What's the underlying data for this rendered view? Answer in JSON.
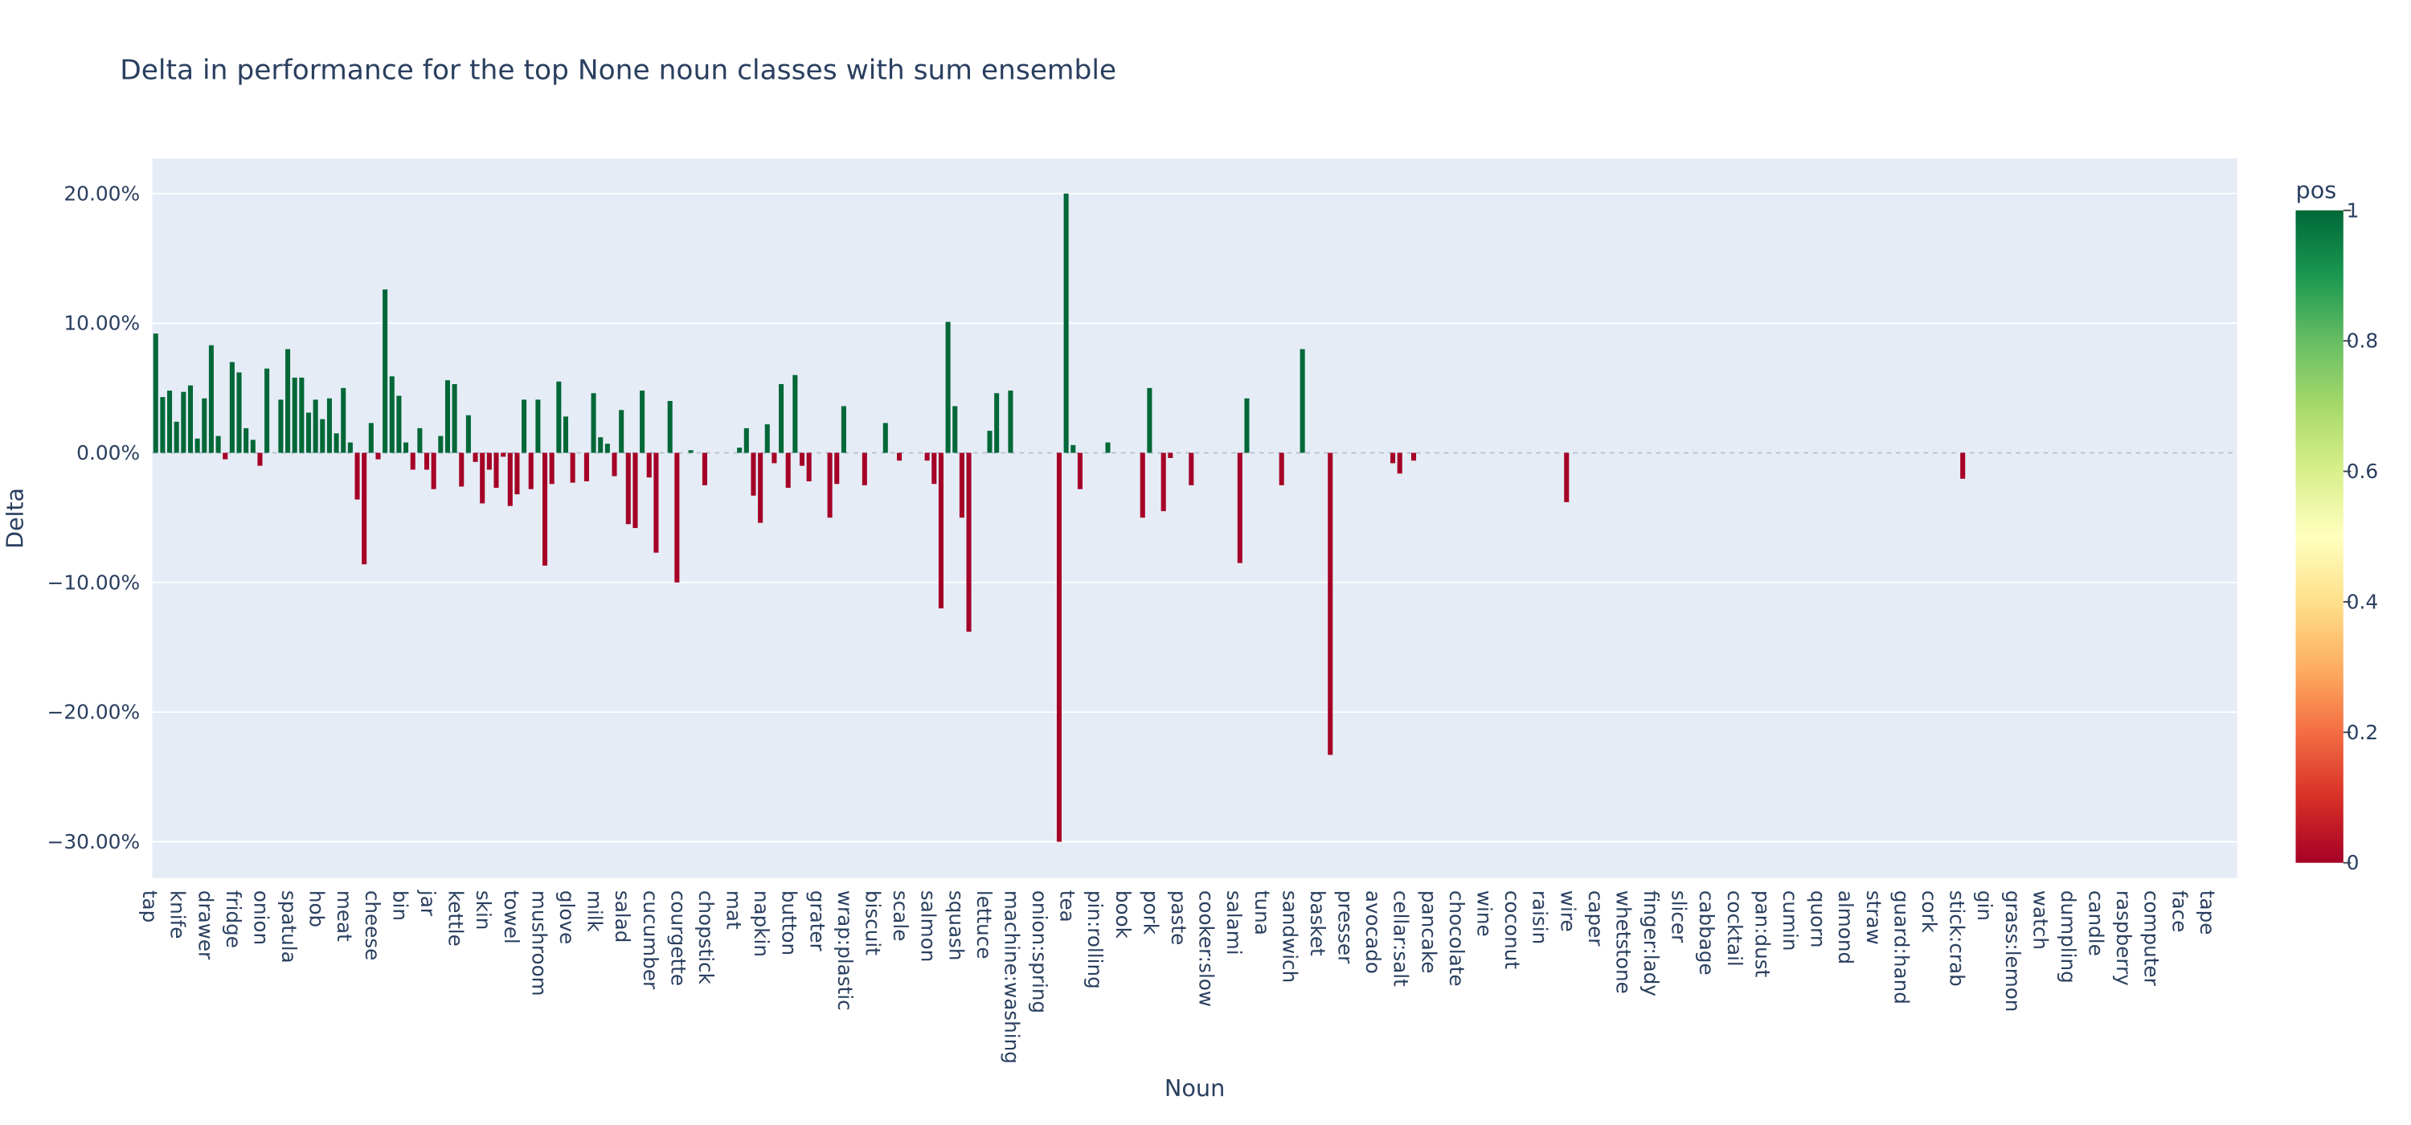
{
  "chart_data": {
    "type": "bar",
    "title": "Delta in performance for the top None noun classes with sum ensemble",
    "xlabel": "Noun",
    "ylabel": "Delta",
    "categories": [
      "tap",
      null,
      null,
      null,
      "knife",
      null,
      null,
      null,
      "drawer",
      null,
      null,
      null,
      "fridge",
      null,
      null,
      null,
      "onion",
      null,
      null,
      null,
      "spatula",
      null,
      null,
      null,
      "hob",
      null,
      null,
      null,
      "meat",
      null,
      null,
      null,
      "cheese",
      null,
      null,
      null,
      "bin",
      null,
      null,
      null,
      "jar",
      null,
      null,
      null,
      "kettle",
      null,
      null,
      null,
      "skin",
      null,
      null,
      null,
      "towel",
      null,
      null,
      null,
      "mushroom",
      null,
      null,
      null,
      "glove",
      null,
      null,
      null,
      "milk",
      null,
      null,
      null,
      "salad",
      null,
      null,
      null,
      "cucumber",
      null,
      null,
      null,
      "courgette",
      null,
      null,
      null,
      "chopstick",
      null,
      null,
      null,
      "mat",
      null,
      null,
      null,
      "napkin",
      null,
      null,
      null,
      "button",
      null,
      null,
      null,
      "grater",
      null,
      null,
      null,
      "wrap:plastic",
      null,
      null,
      null,
      "biscuit",
      null,
      null,
      null,
      "scale",
      null,
      null,
      null,
      "salmon",
      null,
      null,
      null,
      "squash",
      null,
      null,
      null,
      "lettuce",
      null,
      null,
      null,
      "machine:washing",
      null,
      null,
      null,
      "onion:spring",
      null,
      null,
      null,
      "tea",
      null,
      null,
      null,
      "pin:rolling",
      null,
      null,
      null,
      "book",
      null,
      null,
      null,
      "pork",
      null,
      null,
      null,
      "paste",
      null,
      null,
      null,
      "cooker:slow",
      null,
      null,
      null,
      "salami",
      null,
      null,
      null,
      "tuna",
      null,
      null,
      null,
      "sandwich",
      null,
      null,
      null,
      "basket",
      null,
      null,
      null,
      "presser",
      null,
      null,
      null,
      "avocado",
      null,
      null,
      null,
      "cellar:salt",
      null,
      null,
      null,
      "pancake",
      null,
      null,
      null,
      "chocolate",
      null,
      null,
      null,
      "wine",
      null,
      null,
      null,
      "coconut",
      null,
      null,
      null,
      "raisin",
      null,
      null,
      null,
      "wire",
      null,
      null,
      null,
      "caper",
      null,
      null,
      null,
      "whetstone",
      null,
      null,
      null,
      "finger:lady",
      null,
      null,
      null,
      "slicer",
      null,
      null,
      null,
      "cabbage",
      null,
      null,
      null,
      "cocktail",
      null,
      null,
      null,
      "pan:dust",
      null,
      null,
      null,
      "cumin",
      null,
      null,
      null,
      "quorn",
      null,
      null,
      null,
      "almond",
      null,
      null,
      null,
      "straw",
      null,
      null,
      null,
      "guard:hand",
      null,
      null,
      null,
      "cork",
      null,
      null,
      null,
      "stick:crab",
      null,
      null,
      null,
      "gin",
      null,
      null,
      null,
      "grass:lemon",
      null,
      null,
      null,
      "watch",
      null,
      null,
      null,
      "dumpling",
      null,
      null,
      null,
      "candle",
      null,
      null,
      null,
      "raspberry",
      null,
      null,
      null,
      "computer",
      null,
      null,
      null,
      "face",
      null,
      null,
      null,
      "tape",
      null,
      null,
      null
    ],
    "values": [
      0.092,
      0.043,
      0.048,
      0.024,
      0.047,
      0.052,
      0.011,
      0.042,
      0.083,
      0.013,
      -0.005,
      0.07,
      0.062,
      0.019,
      0.01,
      -0.01,
      0.065,
      0,
      0.041,
      0.08,
      0.058,
      0.058,
      0.031,
      0.041,
      0.026,
      0.042,
      0.015,
      0.05,
      0.008,
      -0.036,
      -0.086,
      0.023,
      -0.005,
      0.126,
      0.059,
      0.044,
      0.008,
      -0.013,
      0.019,
      -0.013,
      -0.028,
      0.013,
      0.056,
      0.053,
      -0.026,
      0.029,
      -0.007,
      -0.039,
      -0.013,
      -0.027,
      -0.003,
      -0.041,
      -0.032,
      0.041,
      -0.028,
      0.041,
      -0.087,
      -0.024,
      0.055,
      0.028,
      -0.023,
      0,
      -0.022,
      0.046,
      0.012,
      0.007,
      -0.018,
      0.033,
      -0.055,
      -0.058,
      0.048,
      -0.019,
      -0.077,
      0,
      0.04,
      -0.1,
      0,
      0.002,
      0,
      -0.025,
      0,
      0,
      0,
      0,
      0.004,
      0.019,
      -0.033,
      -0.054,
      0.022,
      -0.008,
      0.053,
      -0.027,
      0.06,
      -0.01,
      -0.022,
      0,
      0,
      -0.05,
      -0.024,
      0.036,
      0,
      0,
      -0.025,
      0,
      0,
      0.023,
      0,
      -0.006,
      0,
      0,
      0,
      -0.006,
      -0.024,
      -0.12,
      0.101,
      0.036,
      -0.05,
      -0.138,
      0,
      0,
      0.017,
      0.046,
      0,
      0.048,
      0,
      0,
      0,
      0,
      0,
      0,
      -0.3,
      0.2,
      0.006,
      -0.028,
      0,
      0,
      0,
      0.008,
      0,
      0,
      0,
      0,
      -0.05,
      0.05,
      0,
      -0.045,
      -0.004,
      0,
      0,
      -0.025,
      0,
      0,
      0,
      0,
      0,
      0,
      -0.085,
      0.042,
      0,
      0,
      0,
      0,
      -0.025,
      0,
      0,
      0.08,
      0,
      0,
      0,
      -0.233,
      0,
      0,
      0,
      0,
      0,
      0,
      0,
      0,
      -0.008,
      -0.016,
      0,
      -0.006,
      0,
      0,
      0,
      0,
      0,
      0,
      0,
      0,
      0,
      0,
      0,
      0,
      0,
      0,
      0,
      0,
      0,
      0,
      0,
      0,
      0,
      -0.038,
      0,
      0,
      0,
      0,
      0,
      0,
      0,
      0,
      0,
      0,
      0,
      0,
      0,
      0,
      0,
      0,
      0,
      0,
      0,
      0,
      0,
      0,
      0,
      0,
      0,
      0,
      0,
      0,
      0,
      0,
      0,
      0,
      0,
      0,
      0,
      0,
      0,
      0,
      0,
      0,
      0,
      0,
      0,
      0,
      0,
      0,
      0,
      0,
      0,
      0,
      0,
      0,
      0,
      0,
      0,
      0,
      -0.02,
      0,
      0,
      0,
      0,
      0,
      0,
      0,
      0,
      0,
      0,
      0,
      0,
      0,
      0,
      0,
      0,
      0,
      0,
      0,
      0,
      0,
      0,
      0,
      0,
      0,
      0,
      0,
      0,
      0,
      0,
      0,
      0,
      0,
      0,
      0,
      0,
      0,
      0,
      0
    ],
    "ylim": [
      -0.328,
      0.227
    ],
    "yticks": [
      {
        "value": 0.2,
        "label": "20.00%"
      },
      {
        "value": 0.1,
        "label": "10.00%"
      },
      {
        "value": 0,
        "label": "0.00%"
      },
      {
        "value": -0.1,
        "label": "−10.00%"
      },
      {
        "value": -0.2,
        "label": "−20.00%"
      },
      {
        "value": -0.3,
        "label": "−30.00%"
      }
    ],
    "grid": true,
    "colorbar": {
      "title": "pos",
      "ticks": [
        0,
        0.2,
        0.4,
        0.6,
        0.8,
        1
      ],
      "colorscale": [
        [
          0,
          "#a50026"
        ],
        [
          0.1,
          "#d73027"
        ],
        [
          0.2,
          "#f46d43"
        ],
        [
          0.3,
          "#fdae61"
        ],
        [
          0.4,
          "#fee08b"
        ],
        [
          0.5,
          "#ffffbf"
        ],
        [
          0.6,
          "#d9ef8b"
        ],
        [
          0.7,
          "#a6d96a"
        ],
        [
          0.8,
          "#66bd63"
        ],
        [
          0.9,
          "#1a9850"
        ],
        [
          1,
          "#006837"
        ]
      ]
    }
  }
}
